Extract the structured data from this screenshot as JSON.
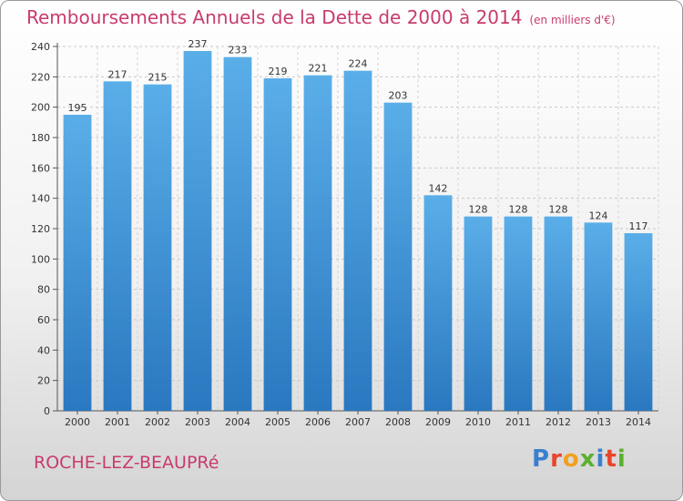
{
  "header": {
    "title": "Remboursements Annuels de la Dette de 2000 à 2014",
    "subtitle": "(en milliers d'€)"
  },
  "footer": {
    "city": "ROCHE-LEZ-BEAUPRé",
    "logo_letters": [
      "P",
      "r",
      "o",
      "x",
      "i",
      "t",
      "i"
    ],
    "logo_colors": [
      "#3a7fd0",
      "#e8452c",
      "#f2a020",
      "#5bb02f",
      "#3a7fd0",
      "#e8452c",
      "#5bb02f"
    ]
  },
  "colors": {
    "bar_light": "#5aaee8",
    "bar_dark": "#2a78c0",
    "title": "#c83b6e"
  },
  "chart_data": {
    "type": "bar",
    "title": "Remboursements Annuels de la Dette de 2000 à 2014",
    "xlabel": "",
    "ylabel": "",
    "ylim": [
      0,
      240
    ],
    "yticks": [
      0,
      20,
      40,
      60,
      80,
      100,
      120,
      140,
      160,
      180,
      200,
      220,
      240
    ],
    "grid": true,
    "categories": [
      "2000",
      "2001",
      "2002",
      "2003",
      "2004",
      "2005",
      "2006",
      "2007",
      "2008",
      "2009",
      "2010",
      "2011",
      "2012",
      "2013",
      "2014"
    ],
    "values": [
      195,
      217,
      215,
      237,
      233,
      219,
      221,
      224,
      203,
      142,
      128,
      128,
      128,
      124,
      117
    ]
  }
}
